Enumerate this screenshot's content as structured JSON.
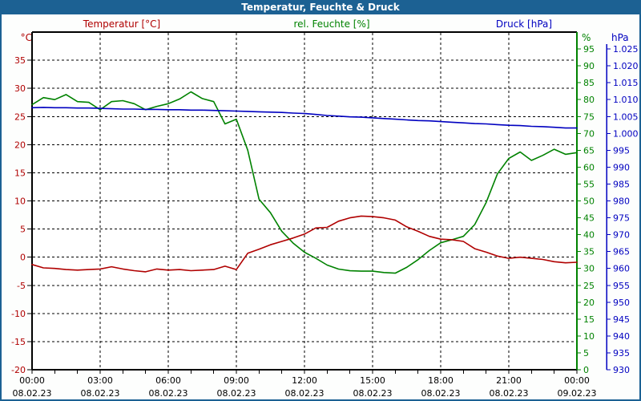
{
  "window": {
    "title": "Temperatur, Feuchte & Druck"
  },
  "colors": {
    "frame": "#1c6193",
    "titlebar": "#1c6193",
    "title_text": "#ffffff",
    "background": "#fdfefd",
    "plot_border": "#000000",
    "grid": "#000000",
    "tick": "#000000",
    "x_labels": "#000000",
    "temperature": "#b00000",
    "humidity": "#008200",
    "pressure": "#0000c0"
  },
  "chart_data": {
    "type": "line",
    "title": "Temperatur, Feuchte & Druck",
    "grid": {
      "style": "dashed",
      "vertical_every_hours": 3,
      "horizontal_every_temp_deg": 5
    },
    "x": {
      "unit": "time",
      "hour_tick_step": 1,
      "major_hours": [
        0,
        3,
        6,
        9,
        12,
        15,
        18,
        21,
        24
      ],
      "time_labels": [
        "00:00",
        "03:00",
        "06:00",
        "09:00",
        "12:00",
        "15:00",
        "18:00",
        "21:00",
        "00:00"
      ],
      "date_labels": [
        "08.02.23",
        "08.02.23",
        "08.02.23",
        "08.02.23",
        "08.02.23",
        "08.02.23",
        "08.02.23",
        "08.02.23",
        "09.02.23"
      ],
      "hours": [
        0,
        0.5,
        1,
        1.5,
        2,
        2.5,
        3,
        3.5,
        4,
        4.5,
        5,
        5.5,
        6,
        6.5,
        7,
        7.5,
        8,
        8.5,
        9,
        9.5,
        10,
        10.5,
        11,
        11.5,
        12,
        12.5,
        13,
        13.5,
        14,
        14.5,
        15,
        15.5,
        16,
        16.5,
        17,
        17.5,
        18,
        18.5,
        19,
        19.5,
        20,
        20.5,
        21,
        21.5,
        22,
        22.5,
        23,
        23.5,
        24
      ]
    },
    "axes": {
      "temperature": {
        "label": "Temperatur [°C]",
        "unit": "°C",
        "side": "left",
        "min": -20,
        "max": 40,
        "color": "#b00000",
        "ticks": [
          35,
          30,
          25,
          20,
          15,
          10,
          5,
          0,
          -5,
          -10,
          -15,
          -20
        ]
      },
      "humidity": {
        "label": "rel. Feuchte [%]",
        "unit": "%",
        "side": "right-inner",
        "min": 0,
        "max": 100,
        "color": "#008200",
        "ticks": [
          95,
          90,
          85,
          80,
          75,
          70,
          65,
          60,
          55,
          50,
          45,
          40,
          35,
          30,
          25,
          20,
          15,
          10,
          5,
          0
        ]
      },
      "pressure": {
        "label": "Druck [hPa]",
        "unit": "hPa",
        "side": "right-outer",
        "min": 930,
        "max": 1030,
        "color": "#0000c0",
        "ticks": [
          1025,
          1020,
          1015,
          1010,
          1005,
          1000,
          995,
          990,
          985,
          980,
          975,
          970,
          965,
          960,
          955,
          950,
          945,
          940,
          935,
          930
        ],
        "tick_labels": [
          "1.025",
          "1.020",
          "1.015",
          "1.010",
          "1.005",
          "1.000",
          "995",
          "990",
          "985",
          "980",
          "975",
          "970",
          "965",
          "960",
          "955",
          "950",
          "945",
          "940",
          "935",
          "930"
        ]
      }
    },
    "series": [
      {
        "name": "rel. Feuchte",
        "axis": "humidity",
        "color": "#008200",
        "values": [
          78.5,
          80.6,
          80.0,
          81.5,
          79.4,
          79.2,
          77.0,
          79.4,
          79.7,
          78.8,
          77.0,
          78.0,
          78.8,
          80.2,
          82.3,
          80.3,
          79.4,
          72.8,
          74.2,
          65.0,
          50.5,
          46.5,
          41.0,
          37.5,
          34.8,
          33.0,
          31.0,
          29.8,
          29.3,
          29.2,
          29.2,
          28.8,
          28.6,
          30.3,
          32.6,
          35.3,
          37.6,
          38.5,
          39.5,
          43.0,
          49.5,
          58.0,
          62.6,
          64.5,
          62.0,
          63.5,
          65.3,
          63.8,
          64.3
        ]
      },
      {
        "name": "Temperatur",
        "axis": "temperature",
        "color": "#b00000",
        "values": [
          -1.3,
          -1.9,
          -2.0,
          -2.2,
          -2.3,
          -2.2,
          -2.1,
          -1.7,
          -2.1,
          -2.4,
          -2.6,
          -2.1,
          -2.3,
          -2.2,
          -2.4,
          -2.3,
          -2.2,
          -1.6,
          -2.2,
          0.7,
          1.4,
          2.2,
          2.8,
          3.4,
          4.1,
          5.2,
          5.3,
          6.4,
          7.0,
          7.3,
          7.2,
          7.0,
          6.6,
          5.4,
          4.6,
          3.7,
          3.2,
          3.1,
          2.8,
          1.5,
          0.9,
          0.2,
          -0.2,
          0.0,
          -0.2,
          -0.4,
          -0.8,
          -1.0,
          -0.9
        ]
      },
      {
        "name": "Druck",
        "axis": "pressure",
        "color": "#0000c0",
        "values": [
          1007.6,
          1007.7,
          1007.6,
          1007.6,
          1007.5,
          1007.5,
          1007.4,
          1007.3,
          1007.2,
          1007.2,
          1007.1,
          1007.1,
          1007.0,
          1007.0,
          1006.9,
          1006.9,
          1006.8,
          1006.7,
          1006.6,
          1006.5,
          1006.4,
          1006.3,
          1006.2,
          1006.0,
          1005.9,
          1005.6,
          1005.3,
          1005.1,
          1004.9,
          1004.8,
          1004.6,
          1004.4,
          1004.2,
          1004.0,
          1003.8,
          1003.7,
          1003.5,
          1003.3,
          1003.1,
          1002.9,
          1002.8,
          1002.6,
          1002.4,
          1002.3,
          1002.1,
          1002.0,
          1001.8,
          1001.6,
          1001.6
        ]
      }
    ]
  }
}
